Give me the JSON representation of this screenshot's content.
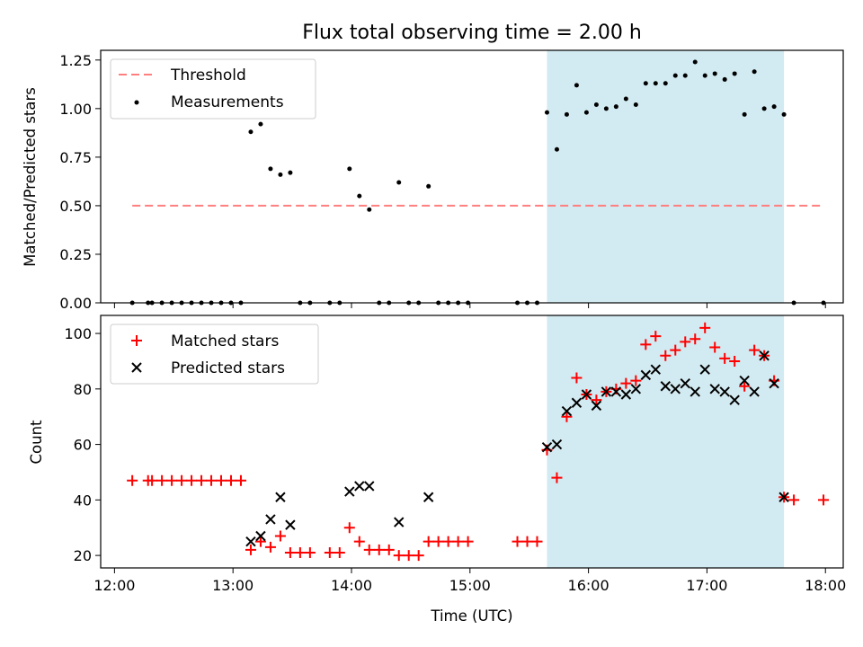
{
  "figure": {
    "title": "Flux total observing time = 2.00 h"
  },
  "chart_data": [
    {
      "type": "scatter",
      "panel": "top",
      "xlabel": "",
      "ylabel": "Matched/Predicted stars",
      "xlim": [
        "11:53",
        "18:09"
      ],
      "ylim": [
        0,
        1.3
      ],
      "yticks": [
        0.0,
        0.25,
        0.5,
        0.75,
        1.0,
        1.25
      ],
      "ytick_labels": [
        "0.00",
        "0.25",
        "0.50",
        "0.75",
        "1.00",
        "1.25"
      ],
      "xticks": [
        "12:00",
        "13:00",
        "14:00",
        "15:00",
        "16:00",
        "17:00",
        "18:00"
      ],
      "shaded_span": {
        "start": "15:39",
        "end": "17:39",
        "color": "#add8e6"
      },
      "threshold": {
        "name": "Threshold",
        "y": 0.5,
        "x_start": "12:09",
        "x_end": "17:59",
        "color": "#ff7f7f"
      },
      "legend": [
        "Threshold",
        "Measurements"
      ],
      "legend_position": "upper left",
      "series": [
        {
          "name": "Measurements",
          "color": "#000000",
          "x": [
            "12:09",
            "12:17",
            "12:19",
            "12:24",
            "12:29",
            "12:34",
            "12:39",
            "12:44",
            "12:49",
            "12:54",
            "12:59",
            "13:04",
            "13:09",
            "13:14",
            "13:19",
            "13:24",
            "13:29",
            "13:34",
            "13:39",
            "13:49",
            "13:54",
            "13:59",
            "14:04",
            "14:09",
            "14:14",
            "14:19",
            "14:24",
            "14:29",
            "14:34",
            "14:39",
            "14:44",
            "14:49",
            "14:54",
            "14:59",
            "15:24",
            "15:29",
            "15:34",
            "15:39",
            "15:44",
            "15:49",
            "15:54",
            "15:59",
            "16:04",
            "16:09",
            "16:14",
            "16:19",
            "16:24",
            "16:29",
            "16:34",
            "16:39",
            "16:44",
            "16:49",
            "16:54",
            "16:59",
            "17:04",
            "17:09",
            "17:14",
            "17:19",
            "17:24",
            "17:29",
            "17:34",
            "17:39",
            "17:44",
            "17:59"
          ],
          "y": [
            0,
            0,
            0,
            0,
            0,
            0,
            0,
            0,
            0,
            0,
            0,
            0,
            0.88,
            0.92,
            0.69,
            0.66,
            0.67,
            0,
            0,
            0,
            0,
            0.69,
            0.55,
            0.48,
            0,
            0,
            0.62,
            0,
            0,
            0.6,
            0,
            0,
            0,
            0,
            0,
            0,
            0,
            0.98,
            0.79,
            0.97,
            1.12,
            0.98,
            1.02,
            1.0,
            1.01,
            1.05,
            1.02,
            1.13,
            1.13,
            1.13,
            1.17,
            1.17,
            1.24,
            1.17,
            1.18,
            1.15,
            1.18,
            0.97,
            1.19,
            1.0,
            1.01,
            0.97,
            0,
            0
          ]
        }
      ]
    },
    {
      "type": "scatter",
      "panel": "bottom",
      "xlabel": "Time (UTC)",
      "ylabel": "Count",
      "xlim": [
        "11:53",
        "18:09"
      ],
      "ylim": [
        15.5,
        106.5
      ],
      "yticks": [
        20,
        40,
        60,
        80,
        100
      ],
      "ytick_labels": [
        "20",
        "40",
        "60",
        "80",
        "100"
      ],
      "xticks": [
        "12:00",
        "13:00",
        "14:00",
        "15:00",
        "16:00",
        "17:00",
        "18:00"
      ],
      "shaded_span": {
        "start": "15:39",
        "end": "17:39",
        "color": "#add8e6"
      },
      "legend": [
        "Matched stars",
        "Predicted stars"
      ],
      "legend_position": "upper left",
      "series": [
        {
          "name": "Matched stars",
          "marker": "+",
          "color": "#ff0000",
          "x": [
            "12:09",
            "12:17",
            "12:19",
            "12:24",
            "12:29",
            "12:34",
            "12:39",
            "12:44",
            "12:49",
            "12:54",
            "12:59",
            "13:04",
            "13:09",
            "13:14",
            "13:19",
            "13:24",
            "13:29",
            "13:34",
            "13:39",
            "13:49",
            "13:54",
            "13:59",
            "14:04",
            "14:09",
            "14:14",
            "14:19",
            "14:24",
            "14:29",
            "14:34",
            "14:39",
            "14:44",
            "14:49",
            "14:54",
            "14:59",
            "15:24",
            "15:29",
            "15:34",
            "15:39",
            "15:44",
            "15:49",
            "15:54",
            "15:59",
            "16:04",
            "16:09",
            "16:14",
            "16:19",
            "16:24",
            "16:29",
            "16:34",
            "16:39",
            "16:44",
            "16:49",
            "16:54",
            "16:59",
            "17:04",
            "17:09",
            "17:14",
            "17:19",
            "17:24",
            "17:29",
            "17:34",
            "17:39",
            "17:44",
            "17:59"
          ],
          "y": [
            47,
            47,
            47,
            47,
            47,
            47,
            47,
            47,
            47,
            47,
            47,
            47,
            22,
            25,
            23,
            27,
            21,
            21,
            21,
            21,
            21,
            30,
            25,
            22,
            22,
            22,
            20,
            20,
            20,
            25,
            25,
            25,
            25,
            25,
            25,
            25,
            25,
            58,
            48,
            70,
            84,
            78,
            76,
            79,
            80,
            82,
            83,
            96,
            99,
            92,
            94,
            97,
            98,
            102,
            95,
            91,
            90,
            81,
            94,
            92,
            83,
            41,
            40,
            40
          ]
        },
        {
          "name": "Predicted stars",
          "marker": "x",
          "color": "#000000",
          "x": [
            "15:39",
            "15:44",
            "15:49",
            "15:54",
            "15:59",
            "16:04",
            "16:09",
            "16:14",
            "16:19",
            "16:24",
            "16:29",
            "16:34",
            "16:39",
            "16:44",
            "16:49",
            "16:54",
            "16:59",
            "17:04",
            "17:09",
            "17:14",
            "17:19",
            "17:24",
            "17:29",
            "17:34",
            "17:39",
            "13:09",
            "13:14",
            "13:19",
            "13:24",
            "13:29",
            "13:59",
            "14:04",
            "14:09",
            "14:24",
            "14:39"
          ],
          "y": [
            59,
            60,
            72,
            75,
            78,
            74,
            79,
            79,
            78,
            80,
            85,
            87,
            81,
            80,
            82,
            79,
            87,
            80,
            79,
            76,
            83,
            79,
            92,
            82,
            41,
            25,
            27,
            33,
            41,
            31,
            43,
            45,
            45,
            32,
            41
          ]
        }
      ]
    }
  ]
}
